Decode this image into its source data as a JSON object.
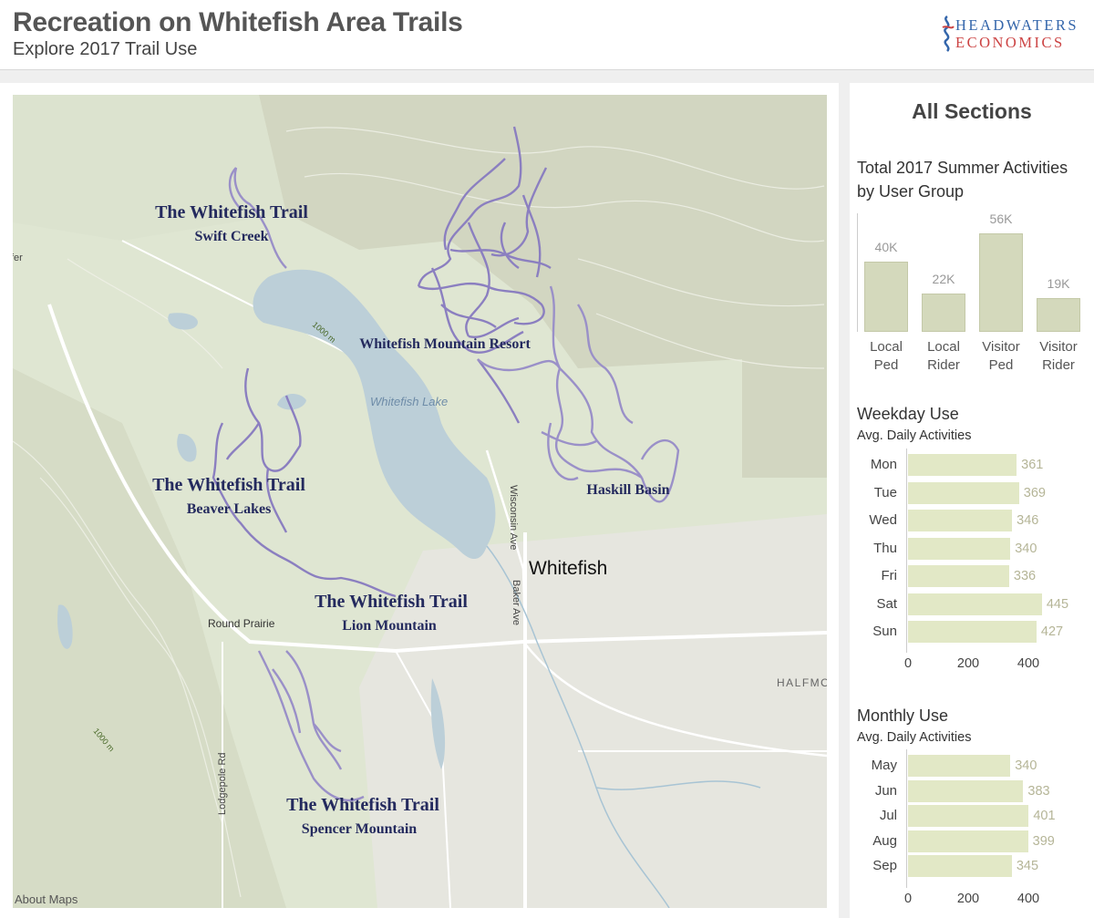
{
  "header": {
    "title": "Recreation on Whitefish Area Trails",
    "subtitle": "Explore 2017 Trail Use",
    "logo_line1": "HEADWATERS",
    "logo_line2": "ECONOMICS"
  },
  "map": {
    "about": "About Maps",
    "trails": [
      {
        "name": "The Whitefish Trail",
        "section": "Swift Creek"
      },
      {
        "name": "The Whitefish Trail",
        "section": "Beaver Lakes"
      },
      {
        "name": "The Whitefish Trail",
        "section": "Lion Mountain"
      },
      {
        "name": "The Whitefish Trail",
        "section": "Spencer Mountain"
      }
    ],
    "areas": [
      {
        "name": "Whitefish Mountain Resort"
      },
      {
        "name": "Haskill Basin"
      }
    ],
    "places": {
      "lake": "Whitefish Lake",
      "town": "Whitefish",
      "round_prairie": "Round Prairie",
      "wisconsin": "Wisconsin Ave",
      "baker": "Baker Ave",
      "lodgepole": "Lodgepole Rd",
      "halfmoon": "HALFMOO",
      "elev1": "1000 m",
      "elev2": "1000 m",
      "edge": "fer"
    }
  },
  "sidebar": {
    "title": "All Sections",
    "colors": {
      "bar_fill": "#e2e8c6",
      "bar_col": "#d4d9bc",
      "trail": "#8b7fc0"
    }
  },
  "chart_data": [
    {
      "type": "bar",
      "title": "Total 2017 Summer Activities by User Group",
      "categories": [
        "Local Ped",
        "Local Rider",
        "Visitor Ped",
        "Visitor Rider"
      ],
      "category_lines": [
        [
          "Local",
          "Ped"
        ],
        [
          "Local",
          "Rider"
        ],
        [
          "Visitor",
          "Ped"
        ],
        [
          "Visitor",
          "Rider"
        ]
      ],
      "values": [
        40000,
        22000,
        56000,
        19000
      ],
      "labels": [
        "40K",
        "22K",
        "56K",
        "19K"
      ]
    },
    {
      "type": "bar",
      "orientation": "horizontal",
      "title": "Weekday Use",
      "subtitle": "Avg. Daily Activities",
      "categories": [
        "Mon",
        "Tue",
        "Wed",
        "Thu",
        "Fri",
        "Sat",
        "Sun"
      ],
      "values": [
        361,
        369,
        346,
        340,
        336,
        445,
        427
      ],
      "xticks": [
        0,
        200,
        400
      ],
      "xlim": [
        0,
        450
      ]
    },
    {
      "type": "bar",
      "orientation": "horizontal",
      "title": "Monthly Use",
      "subtitle": "Avg. Daily Activities",
      "categories": [
        "May",
        "Jun",
        "Jul",
        "Aug",
        "Sep"
      ],
      "values": [
        340,
        383,
        401,
        399,
        345
      ],
      "xticks": [
        0,
        200,
        400
      ],
      "xlim": [
        0,
        440
      ]
    }
  ]
}
